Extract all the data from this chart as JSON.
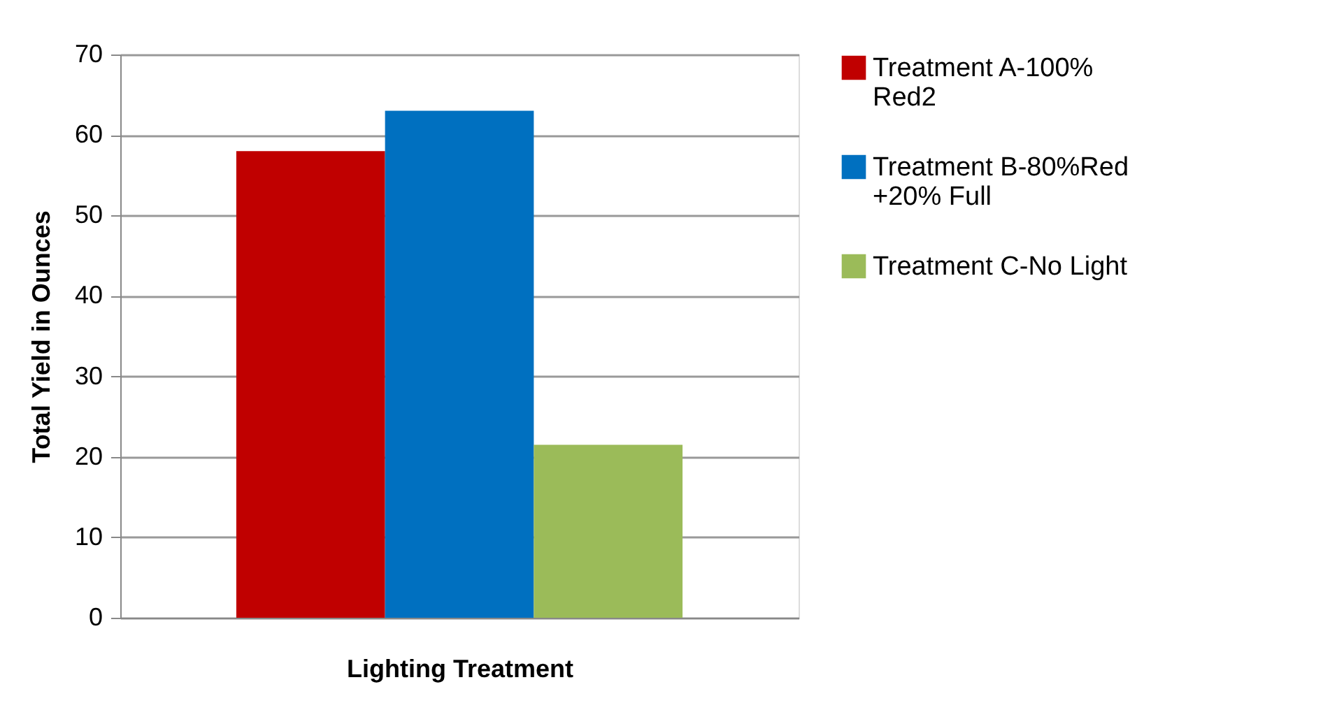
{
  "chart_data": {
    "type": "bar",
    "xlabel": "Lighting Treatment",
    "ylabel": "Total Yield in Ounces",
    "categories": [
      null
    ],
    "series": [
      {
        "name": "Treatment A-100% Red2",
        "color": "#c00000",
        "values": [
          58
        ]
      },
      {
        "name": "Treatment B-80%Red +20% Full",
        "color": "#0070c0",
        "values": [
          63
        ]
      },
      {
        "name": "Treatment C-No Light",
        "color": "#9bbb59",
        "values": [
          21.5
        ]
      }
    ],
    "ylim": [
      0,
      70
    ],
    "yticks": [
      0,
      10,
      20,
      30,
      40,
      50,
      60,
      70
    ],
    "grid": "y",
    "legend": "right"
  }
}
